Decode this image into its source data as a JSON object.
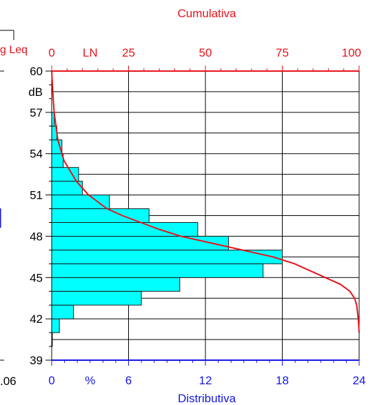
{
  "colors": {
    "bar_fill": "#00ffff",
    "bar_stroke": "#1a1a1a",
    "cumulative_line": "#e8121b",
    "top_axis": "#e8121b",
    "bottom_axis": "#1515e0",
    "grid": "#000000"
  },
  "clipped_texts": {
    "left_label": "g Leq",
    "bottom_left": ".06"
  },
  "chart_data": {
    "type": "bar",
    "orientation": "horizontal-histogram",
    "title_top": "Cumulativa",
    "xlabel_bottom": "Distributiva",
    "top_axis": {
      "label": "LN",
      "range": [
        0,
        100
      ],
      "ticks": [
        0,
        25,
        50,
        75,
        100
      ],
      "minor_step": 5
    },
    "bottom_axis": {
      "unit": "%",
      "range": [
        0,
        24
      ],
      "ticks": [
        0,
        6,
        12,
        18,
        24
      ],
      "minor_step": 1
    },
    "y_axis": {
      "unit": "dB",
      "range": [
        39,
        60
      ],
      "ticks": [
        60,
        57,
        54,
        51,
        48,
        45,
        42,
        39
      ],
      "minor_step": 1
    },
    "bars": [
      {
        "y0": 40,
        "y1": 41,
        "value": 0.05
      },
      {
        "y0": 41,
        "y1": 42,
        "value": 0.6
      },
      {
        "y0": 42,
        "y1": 43,
        "value": 1.7
      },
      {
        "y0": 43,
        "y1": 44,
        "value": 7.0
      },
      {
        "y0": 44,
        "y1": 45,
        "value": 10.0
      },
      {
        "y0": 45,
        "y1": 46,
        "value": 16.5
      },
      {
        "y0": 46,
        "y1": 47,
        "value": 18.0
      },
      {
        "y0": 47,
        "y1": 48,
        "value": 13.8
      },
      {
        "y0": 48,
        "y1": 49,
        "value": 11.4
      },
      {
        "y0": 49,
        "y1": 50,
        "value": 7.6
      },
      {
        "y0": 50,
        "y1": 51,
        "value": 4.5
      },
      {
        "y0": 51,
        "y1": 52,
        "value": 2.4
      },
      {
        "y0": 52,
        "y1": 53,
        "value": 2.1
      },
      {
        "y0": 53,
        "y1": 54,
        "value": 0.9
      },
      {
        "y0": 54,
        "y1": 55,
        "value": 0.8
      },
      {
        "y0": 55,
        "y1": 56,
        "value": 0.4
      },
      {
        "y0": 56,
        "y1": 57,
        "value": 0.2
      }
    ],
    "cumulative": [
      {
        "db": 60.0,
        "ln": 0
      },
      {
        "db": 58.0,
        "ln": 0.5
      },
      {
        "db": 57.0,
        "ln": 0.8
      },
      {
        "db": 55.0,
        "ln": 2
      },
      {
        "db": 53.5,
        "ln": 4
      },
      {
        "db": 52.0,
        "ln": 8
      },
      {
        "db": 51.0,
        "ln": 12
      },
      {
        "db": 50.5,
        "ln": 15
      },
      {
        "db": 50.0,
        "ln": 18
      },
      {
        "db": 49.5,
        "ln": 23
      },
      {
        "db": 49.0,
        "ln": 29
      },
      {
        "db": 48.5,
        "ln": 35
      },
      {
        "db": 48.0,
        "ln": 42
      },
      {
        "db": 47.5,
        "ln": 52
      },
      {
        "db": 47.0,
        "ln": 62
      },
      {
        "db": 46.5,
        "ln": 72
      },
      {
        "db": 46.0,
        "ln": 79
      },
      {
        "db": 45.5,
        "ln": 84
      },
      {
        "db": 45.0,
        "ln": 89
      },
      {
        "db": 44.5,
        "ln": 94
      },
      {
        "db": 44.0,
        "ln": 97
      },
      {
        "db": 43.5,
        "ln": 98.5
      },
      {
        "db": 43.0,
        "ln": 99.2
      },
      {
        "db": 42.0,
        "ln": 99.7
      },
      {
        "db": 41.0,
        "ln": 100
      }
    ]
  }
}
